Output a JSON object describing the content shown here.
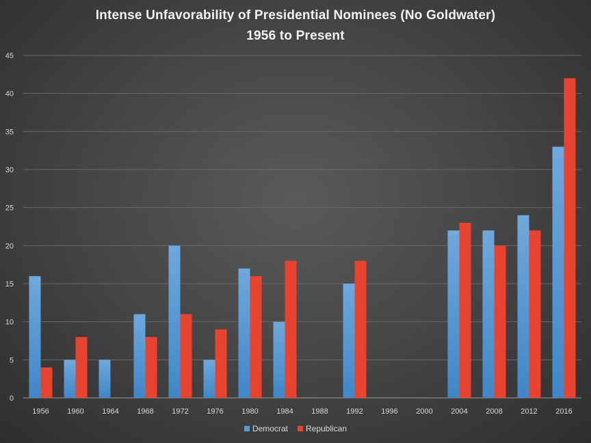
{
  "chart_data": {
    "type": "bar",
    "title": "Intense Unfavorability of Presidential Nominees (No Goldwater)",
    "subtitle": "1956 to Present",
    "xlabel": "",
    "ylabel": "",
    "ylim": [
      0,
      45
    ],
    "yticks": [
      0,
      5,
      10,
      15,
      20,
      25,
      30,
      35,
      40,
      45
    ],
    "grid": true,
    "legend_position": "bottom",
    "categories": [
      "1956",
      "1960",
      "1964",
      "1968",
      "1972",
      "1976",
      "1980",
      "1984",
      "1988",
      "1992",
      "1996",
      "2000",
      "2004",
      "2008",
      "2012",
      "2016"
    ],
    "series": [
      {
        "name": "Democrat",
        "color": "#5b9bd5",
        "values": [
          16,
          5,
          5,
          11,
          20,
          5,
          17,
          10,
          null,
          15,
          null,
          null,
          22,
          22,
          24,
          33
        ]
      },
      {
        "name": "Republican",
        "color": "#e8432e",
        "values": [
          4,
          8,
          null,
          8,
          11,
          9,
          16,
          18,
          null,
          18,
          null,
          null,
          23,
          20,
          22,
          42
        ]
      }
    ]
  }
}
